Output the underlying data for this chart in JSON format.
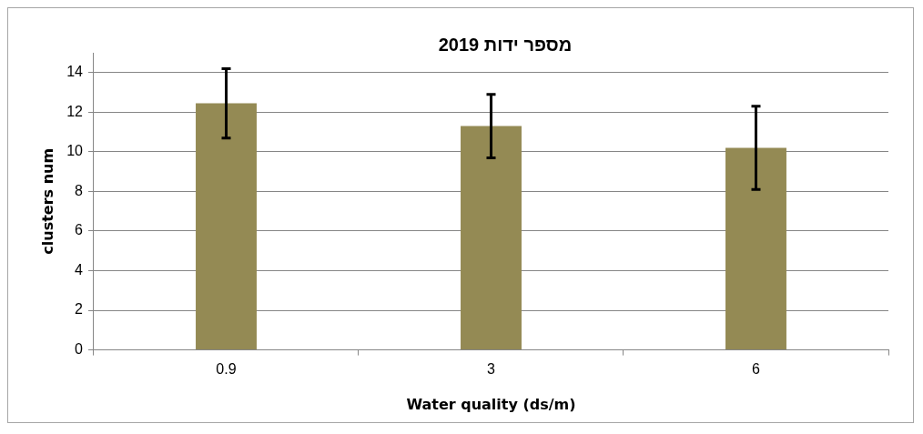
{
  "chart_data": {
    "type": "bar",
    "title": "מספר ידות 2019",
    "xlabel": "Water quality (ds/m)",
    "ylabel": "clusters num",
    "categories": [
      "0.9",
      "3",
      "6"
    ],
    "values": [
      12.45,
      11.3,
      10.2
    ],
    "errors": [
      1.75,
      1.6,
      2.1
    ],
    "color": "#948a54",
    "ylim": [
      0,
      15
    ],
    "yticks": [
      0,
      2,
      4,
      6,
      8,
      10,
      12,
      14
    ],
    "grid": "y",
    "legend": false
  }
}
